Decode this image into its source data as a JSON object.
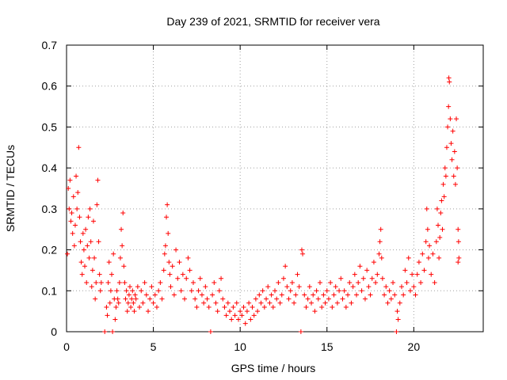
{
  "chart_data": {
    "type": "scatter",
    "title": "Day 239 of 2021, SRMTID for receiver vera",
    "xlabel": "GPS time / hours",
    "ylabel": "SRMTID / TECUs",
    "xlim": [
      0,
      24
    ],
    "ylim": [
      0,
      0.7
    ],
    "xticks": [
      0,
      5,
      10,
      15,
      20
    ],
    "xtick_labels": [
      "0",
      "5",
      "10",
      "15",
      "20"
    ],
    "yticks": [
      0,
      0.1,
      0.2,
      0.3,
      0.4,
      0.5,
      0.6,
      0.7
    ],
    "ytick_labels": [
      "0",
      "0.1",
      "0.2",
      "0.3",
      "0.4",
      "0.5",
      "0.6",
      "0.7"
    ],
    "grid": true,
    "marker": "+",
    "color": "#ff0000",
    "series": [
      {
        "name": "SRMTID",
        "points": [
          [
            0.05,
            0.19
          ],
          [
            0.1,
            0.35
          ],
          [
            0.15,
            0.3
          ],
          [
            0.2,
            0.37
          ],
          [
            0.25,
            0.27
          ],
          [
            0.3,
            0.29
          ],
          [
            0.35,
            0.24
          ],
          [
            0.4,
            0.33
          ],
          [
            0.45,
            0.21
          ],
          [
            0.5,
            0.26
          ],
          [
            0.55,
            0.38
          ],
          [
            0.6,
            0.3
          ],
          [
            0.65,
            0.34
          ],
          [
            0.7,
            0.45
          ],
          [
            0.75,
            0.28
          ],
          [
            0.8,
            0.22
          ],
          [
            0.85,
            0.17
          ],
          [
            0.9,
            0.14
          ],
          [
            0.95,
            0.24
          ],
          [
            1.0,
            0.2
          ],
          [
            1.05,
            0.16
          ],
          [
            1.1,
            0.25
          ],
          [
            1.15,
            0.12
          ],
          [
            1.2,
            0.21
          ],
          [
            1.25,
            0.28
          ],
          [
            1.3,
            0.18
          ],
          [
            1.35,
            0.3
          ],
          [
            1.4,
            0.22
          ],
          [
            1.45,
            0.11
          ],
          [
            1.5,
            0.15
          ],
          [
            1.55,
            0.27
          ],
          [
            1.6,
            0.18
          ],
          [
            1.65,
            0.08
          ],
          [
            1.7,
            0.12
          ],
          [
            1.75,
            0.31
          ],
          [
            1.8,
            0.37
          ],
          [
            1.85,
            0.22
          ],
          [
            1.9,
            0.14
          ],
          [
            1.95,
            0.1
          ],
          [
            2.0,
            0.12
          ],
          [
            2.2,
            0.0
          ],
          [
            2.3,
            0.06
          ],
          [
            2.35,
            0.04
          ],
          [
            2.4,
            0.12
          ],
          [
            2.45,
            0.17
          ],
          [
            2.5,
            0.07
          ],
          [
            2.55,
            0.1
          ],
          [
            2.6,
            0.14
          ],
          [
            2.65,
            0.0
          ],
          [
            2.7,
            0.19
          ],
          [
            2.75,
            0.08
          ],
          [
            2.8,
            0.03
          ],
          [
            2.85,
            0.06
          ],
          [
            2.9,
            0.1
          ],
          [
            2.95,
            0.08
          ],
          [
            3.0,
            0.07
          ],
          [
            3.05,
            0.12
          ],
          [
            3.1,
            0.18
          ],
          [
            3.15,
            0.25
          ],
          [
            3.2,
            0.21
          ],
          [
            3.25,
            0.29
          ],
          [
            3.3,
            0.16
          ],
          [
            3.35,
            0.12
          ],
          [
            3.4,
            0.08
          ],
          [
            3.45,
            0.1
          ],
          [
            3.5,
            0.05
          ],
          [
            3.55,
            0.07
          ],
          [
            3.6,
            0.09
          ],
          [
            3.65,
            0.11
          ],
          [
            3.7,
            0.06
          ],
          [
            3.75,
            0.08
          ],
          [
            3.8,
            0.1
          ],
          [
            3.85,
            0.07
          ],
          [
            3.9,
            0.05
          ],
          [
            3.95,
            0.09
          ],
          [
            4.0,
            0.08
          ],
          [
            4.1,
            0.11
          ],
          [
            4.2,
            0.06
          ],
          [
            4.3,
            0.1
          ],
          [
            4.4,
            0.07
          ],
          [
            4.5,
            0.12
          ],
          [
            4.6,
            0.09
          ],
          [
            4.7,
            0.05
          ],
          [
            4.8,
            0.08
          ],
          [
            4.9,
            0.11
          ],
          [
            5.0,
            0.07
          ],
          [
            5.1,
            0.09
          ],
          [
            5.2,
            0.06
          ],
          [
            5.3,
            0.1
          ],
          [
            5.4,
            0.12
          ],
          [
            5.5,
            0.08
          ],
          [
            5.6,
            0.15
          ],
          [
            5.65,
            0.19
          ],
          [
            5.7,
            0.21
          ],
          [
            5.75,
            0.28
          ],
          [
            5.8,
            0.31
          ],
          [
            5.85,
            0.24
          ],
          [
            5.9,
            0.17
          ],
          [
            5.95,
            0.14
          ],
          [
            6.0,
            0.11
          ],
          [
            6.1,
            0.16
          ],
          [
            6.2,
            0.09
          ],
          [
            6.3,
            0.2
          ],
          [
            6.4,
            0.13
          ],
          [
            6.5,
            0.17
          ],
          [
            6.6,
            0.1
          ],
          [
            6.7,
            0.14
          ],
          [
            6.8,
            0.08
          ],
          [
            6.9,
            0.13
          ],
          [
            7.0,
            0.18
          ],
          [
            7.1,
            0.15
          ],
          [
            7.2,
            0.1
          ],
          [
            7.3,
            0.12
          ],
          [
            7.4,
            0.08
          ],
          [
            7.5,
            0.06
          ],
          [
            7.6,
            0.1
          ],
          [
            7.7,
            0.13
          ],
          [
            7.8,
            0.09
          ],
          [
            7.9,
            0.07
          ],
          [
            8.0,
            0.11
          ],
          [
            8.1,
            0.08
          ],
          [
            8.2,
            0.06
          ],
          [
            8.3,
            0.0
          ],
          [
            8.4,
            0.09
          ],
          [
            8.5,
            0.12
          ],
          [
            8.6,
            0.07
          ],
          [
            8.7,
            0.05
          ],
          [
            8.8,
            0.1
          ],
          [
            8.9,
            0.13
          ],
          [
            9.0,
            0.08
          ],
          [
            9.1,
            0.06
          ],
          [
            9.2,
            0.04
          ],
          [
            9.3,
            0.07
          ],
          [
            9.4,
            0.05
          ],
          [
            9.5,
            0.03
          ],
          [
            9.6,
            0.06
          ],
          [
            9.7,
            0.04
          ],
          [
            9.8,
            0.07
          ],
          [
            9.9,
            0.03
          ],
          [
            10.0,
            0.05
          ],
          [
            10.1,
            0.04
          ],
          [
            10.2,
            0.06
          ],
          [
            10.3,
            0.02
          ],
          [
            10.4,
            0.05
          ],
          [
            10.5,
            0.07
          ],
          [
            10.6,
            0.03
          ],
          [
            10.7,
            0.06
          ],
          [
            10.8,
            0.04
          ],
          [
            10.9,
            0.08
          ],
          [
            11.0,
            0.05
          ],
          [
            11.1,
            0.09
          ],
          [
            11.2,
            0.07
          ],
          [
            11.3,
            0.1
          ],
          [
            11.4,
            0.06
          ],
          [
            11.5,
            0.08
          ],
          [
            11.6,
            0.11
          ],
          [
            11.7,
            0.07
          ],
          [
            11.8,
            0.09
          ],
          [
            11.9,
            0.06
          ],
          [
            12.0,
            0.1
          ],
          [
            12.1,
            0.08
          ],
          [
            12.2,
            0.12
          ],
          [
            12.3,
            0.07
          ],
          [
            12.4,
            0.09
          ],
          [
            12.5,
            0.13
          ],
          [
            12.6,
            0.16
          ],
          [
            12.7,
            0.11
          ],
          [
            12.8,
            0.08
          ],
          [
            12.9,
            0.1
          ],
          [
            13.0,
            0.12
          ],
          [
            13.1,
            0.07
          ],
          [
            13.2,
            0.09
          ],
          [
            13.3,
            0.14
          ],
          [
            13.4,
            0.11
          ],
          [
            13.5,
            0.0
          ],
          [
            13.55,
            0.2
          ],
          [
            13.6,
            0.19
          ],
          [
            13.7,
            0.09
          ],
          [
            13.8,
            0.06
          ],
          [
            13.9,
            0.08
          ],
          [
            14.0,
            0.11
          ],
          [
            14.1,
            0.07
          ],
          [
            14.2,
            0.09
          ],
          [
            14.3,
            0.05
          ],
          [
            14.4,
            0.1
          ],
          [
            14.5,
            0.08
          ],
          [
            14.6,
            0.12
          ],
          [
            14.7,
            0.06
          ],
          [
            14.8,
            0.09
          ],
          [
            14.9,
            0.07
          ],
          [
            15.0,
            0.1
          ],
          [
            15.1,
            0.08
          ],
          [
            15.2,
            0.12
          ],
          [
            15.3,
            0.06
          ],
          [
            15.4,
            0.09
          ],
          [
            15.5,
            0.11
          ],
          [
            15.6,
            0.07
          ],
          [
            15.7,
            0.1
          ],
          [
            15.8,
            0.13
          ],
          [
            15.9,
            0.08
          ],
          [
            16.0,
            0.1
          ],
          [
            16.1,
            0.06
          ],
          [
            16.2,
            0.09
          ],
          [
            16.3,
            0.12
          ],
          [
            16.4,
            0.07
          ],
          [
            16.5,
            0.11
          ],
          [
            16.6,
            0.14
          ],
          [
            16.7,
            0.09
          ],
          [
            16.8,
            0.12
          ],
          [
            16.9,
            0.16
          ],
          [
            17.0,
            0.1
          ],
          [
            17.1,
            0.13
          ],
          [
            17.2,
            0.08
          ],
          [
            17.3,
            0.15
          ],
          [
            17.4,
            0.11
          ],
          [
            17.5,
            0.09
          ],
          [
            17.6,
            0.13
          ],
          [
            17.7,
            0.17
          ],
          [
            17.8,
            0.12
          ],
          [
            17.9,
            0.14
          ],
          [
            18.0,
            0.19
          ],
          [
            18.05,
            0.22
          ],
          [
            18.1,
            0.25
          ],
          [
            18.15,
            0.18
          ],
          [
            18.2,
            0.13
          ],
          [
            18.3,
            0.09
          ],
          [
            18.4,
            0.11
          ],
          [
            18.5,
            0.07
          ],
          [
            18.6,
            0.1
          ],
          [
            18.7,
            0.08
          ],
          [
            18.8,
            0.12
          ],
          [
            18.9,
            0.09
          ],
          [
            19.0,
            0.0
          ],
          [
            19.05,
            0.05
          ],
          [
            19.1,
            0.03
          ],
          [
            19.2,
            0.07
          ],
          [
            19.3,
            0.11
          ],
          [
            19.4,
            0.09
          ],
          [
            19.5,
            0.15
          ],
          [
            19.6,
            0.12
          ],
          [
            19.7,
            0.18
          ],
          [
            19.8,
            0.1
          ],
          [
            19.9,
            0.14
          ],
          [
            20.0,
            0.11
          ],
          [
            20.1,
            0.09
          ],
          [
            20.2,
            0.14
          ],
          [
            20.3,
            0.17
          ],
          [
            20.4,
            0.12
          ],
          [
            20.5,
            0.19
          ],
          [
            20.6,
            0.15
          ],
          [
            20.7,
            0.22
          ],
          [
            20.75,
            0.3
          ],
          [
            20.8,
            0.25
          ],
          [
            20.85,
            0.18
          ],
          [
            20.9,
            0.21
          ],
          [
            21.0,
            0.14
          ],
          [
            21.1,
            0.19
          ],
          [
            21.2,
            0.12
          ],
          [
            21.3,
            0.22
          ],
          [
            21.35,
            0.3
          ],
          [
            21.4,
            0.26
          ],
          [
            21.45,
            0.18
          ],
          [
            21.5,
            0.23
          ],
          [
            21.55,
            0.29
          ],
          [
            21.6,
            0.32
          ],
          [
            21.65,
            0.25
          ],
          [
            21.7,
            0.36
          ],
          [
            21.75,
            0.33
          ],
          [
            21.8,
            0.4
          ],
          [
            21.85,
            0.38
          ],
          [
            21.9,
            0.45
          ],
          [
            21.95,
            0.5
          ],
          [
            22.0,
            0.55
          ],
          [
            22.02,
            0.62
          ],
          [
            22.05,
            0.61
          ],
          [
            22.1,
            0.52
          ],
          [
            22.15,
            0.46
          ],
          [
            22.2,
            0.42
          ],
          [
            22.25,
            0.49
          ],
          [
            22.3,
            0.38
          ],
          [
            22.35,
            0.44
          ],
          [
            22.4,
            0.36
          ],
          [
            22.45,
            0.52
          ],
          [
            22.5,
            0.4
          ],
          [
            22.55,
            0.25
          ],
          [
            22.58,
            0.22
          ],
          [
            22.6,
            0.18
          ],
          [
            22.55,
            0.17
          ]
        ]
      }
    ]
  }
}
